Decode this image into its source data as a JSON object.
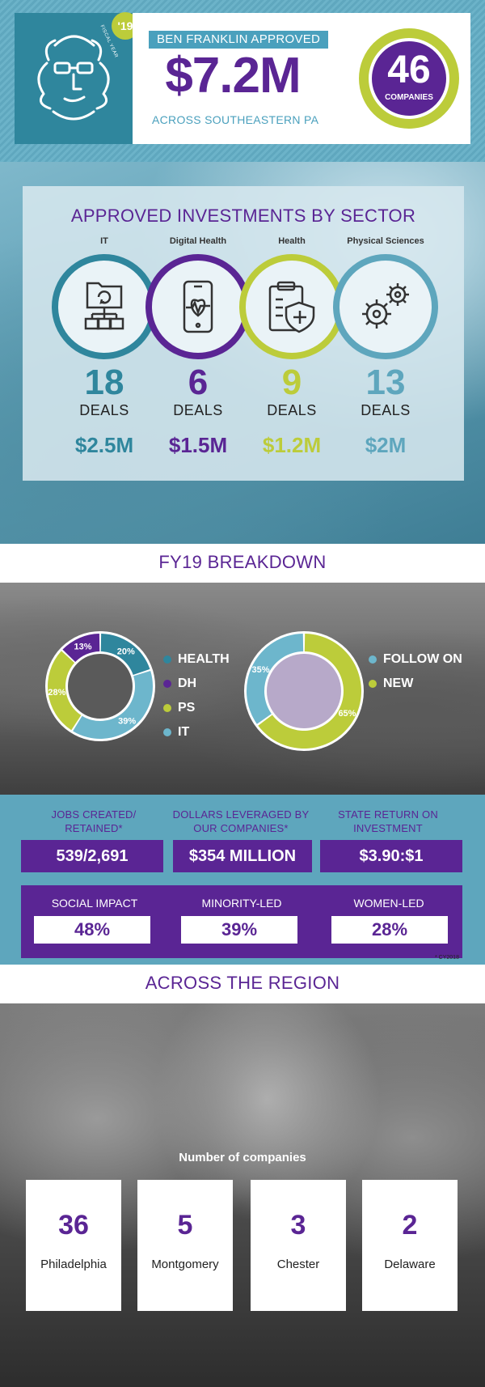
{
  "header": {
    "fy_badge": "'19",
    "fy_small": "FISCAL YEAR",
    "approved_label": "BEN FRANKLIN APPROVED",
    "amount": "$7.2M",
    "region_sub": "ACROSS SOUTHEASTERN PA",
    "companies_count": "46",
    "companies_label": "COMPANIES"
  },
  "sectors": {
    "title": "APPROVED INVESTMENTS BY SECTOR",
    "deals_label": "DEALS",
    "items": [
      {
        "name": "IT",
        "deals": "18",
        "amount": "$2.5M",
        "color": "#2f869d",
        "icon": "network-folder-icon"
      },
      {
        "name": "Digital Health",
        "deals": "6",
        "amount": "$1.5M",
        "color": "#5a2594",
        "icon": "phone-heartbeat-icon"
      },
      {
        "name": "Health",
        "deals": "9",
        "amount": "$1.2M",
        "color": "#bccc3a",
        "icon": "clipboard-shield-icon"
      },
      {
        "name": "Physical Sciences",
        "deals": "13",
        "amount": "$2M",
        "color": "#5ea6bd",
        "icon": "gears-icon"
      }
    ]
  },
  "breakdown": {
    "title": "FY19 BREAKDOWN",
    "sector_donut": {
      "slices": [
        {
          "label": "HEALTH",
          "pct": 20,
          "pct_label": "20%",
          "color": "#2f869d"
        },
        {
          "label": "IT",
          "pct": 39,
          "pct_label": "39%",
          "color": "#6db6cc"
        },
        {
          "label": "PS",
          "pct": 28,
          "pct_label": "28%",
          "color": "#bccc3a"
        },
        {
          "label": "DH",
          "pct": 13,
          "pct_label": "13%",
          "color": "#5a2594"
        }
      ],
      "legend": [
        {
          "label": "HEALTH",
          "color": "#2f869d"
        },
        {
          "label": "DH",
          "color": "#5a2594"
        },
        {
          "label": "PS",
          "color": "#bccc3a"
        },
        {
          "label": "IT",
          "color": "#6db6cc"
        }
      ]
    },
    "followon_donut": {
      "slices": [
        {
          "label": "NEW",
          "pct": 65,
          "pct_label": "65%",
          "color": "#bccc3a"
        },
        {
          "label": "FOLLOW ON",
          "pct": 35,
          "pct_label": "35%",
          "color": "#6db6cc"
        }
      ],
      "legend": [
        {
          "label": "FOLLOW ON",
          "color": "#6db6cc"
        },
        {
          "label": "NEW",
          "color": "#bccc3a"
        }
      ]
    }
  },
  "stats": {
    "jobs_label": "JOBS CREATED/ RETAINED*",
    "jobs_value": "539/2,691",
    "dollars_label": "DOLLARS LEVERAGED BY OUR COMPANIES*",
    "dollars_value": "$354 MILLION",
    "roi_label": "STATE RETURN ON INVESTMENT",
    "roi_value": "$3.90:$1",
    "social_label": "SOCIAL IMPACT",
    "social_value": "48%",
    "minority_label": "MINORITY-LED",
    "minority_value": "39%",
    "women_label": "WOMEN-LED",
    "women_value": "28%",
    "footnote": "* CY2018"
  },
  "region": {
    "title": "ACROSS THE REGION",
    "subtitle": "Number of companies",
    "counties": [
      {
        "count": "36",
        "name": "Philadelphia"
      },
      {
        "count": "5",
        "name": "Montgomery"
      },
      {
        "count": "3",
        "name": "Chester"
      },
      {
        "count": "2",
        "name": "Delaware"
      }
    ]
  }
}
